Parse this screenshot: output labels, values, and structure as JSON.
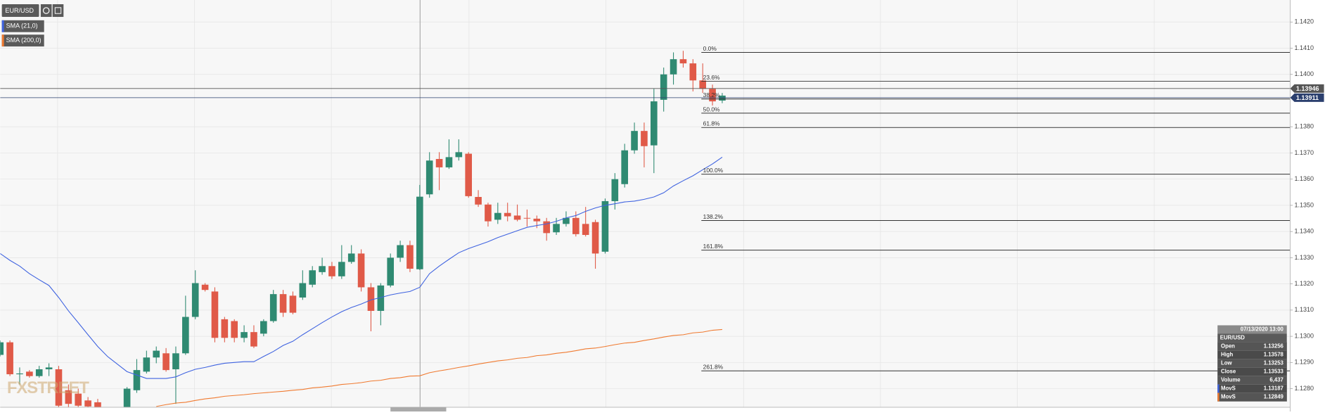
{
  "chart_data": {
    "type": "candlestick",
    "symbol": "EUR/USD",
    "categories": [
      null,
      null,
      null,
      null,
      null,
      null,
      null,
      null,
      null,
      null,
      null,
      null,
      null,
      null,
      null,
      null,
      null,
      null,
      null,
      null,
      null,
      null,
      null,
      null,
      null,
      null,
      null,
      null,
      null,
      null,
      null,
      null,
      null,
      null,
      null,
      null,
      null,
      null,
      null,
      null,
      null,
      null,
      null,
      null,
      null,
      null,
      null,
      null,
      null,
      null,
      null,
      null,
      null,
      null,
      null,
      null,
      null,
      null,
      null,
      null,
      null,
      null,
      null,
      null,
      null,
      null,
      null,
      null,
      null,
      null,
      null,
      null,
      null,
      null,
      null
    ],
    "open": [
      1.12929,
      1.12977,
      1.12855,
      1.12865,
      1.12848,
      1.12874,
      1.12874,
      1.12794,
      1.12781,
      1.12755,
      1.12748,
      1.1272,
      1.127,
      1.12715,
      1.12794,
      1.12865,
      1.12919,
      1.12935,
      1.12874,
      1.12935,
      1.13074,
      1.13197,
      1.13171,
      1.13065,
      1.13058,
      1.12994,
      1.13016,
      1.1301,
      1.13058,
      1.13161,
      1.13155,
      1.13148,
      1.13197,
      1.13245,
      1.13268,
      1.13229,
      1.13284,
      1.13316,
      1.13187,
      1.13097,
      1.13194,
      1.133,
      1.13348,
      1.13256,
      1.13542,
      1.13677,
      1.13645,
      1.13684,
      1.13697,
      1.13532,
      1.13503,
      1.13445,
      1.13471,
      1.13461,
      1.13452,
      1.13449,
      1.13439,
      1.13397,
      1.13429,
      1.13452,
      1.13429,
      1.13436,
      1.13323,
      1.13516,
      1.13581,
      1.1371,
      1.13784,
      1.13729,
      1.13903,
      1.14,
      1.14058,
      1.14042,
      1.13977,
      1.13945,
      1.139
    ],
    "high": [
      1.12984,
      1.12984,
      1.12881,
      1.12871,
      1.12887,
      1.12897,
      1.12887,
      1.12816,
      1.128,
      1.12768,
      1.12761,
      1.12725,
      1.12722,
      1.12806,
      1.12913,
      1.12945,
      1.12961,
      1.12955,
      1.12961,
      1.13155,
      1.13252,
      1.13203,
      1.13187,
      1.13074,
      1.13065,
      1.13042,
      1.13042,
      1.13065,
      1.13177,
      1.13177,
      1.13171,
      1.13252,
      1.13268,
      1.133,
      1.13284,
      1.13348,
      1.13348,
      1.13332,
      1.13203,
      1.13203,
      1.13316,
      1.13365,
      1.13365,
      1.13578,
      1.13703,
      1.13703,
      1.13752,
      1.13752,
      1.13703,
      1.13558,
      1.1351,
      1.1351,
      1.1351,
      1.13503,
      1.13484,
      1.13461,
      1.13452,
      1.13452,
      1.13477,
      1.13477,
      1.13494,
      1.13445,
      1.13526,
      1.13623,
      1.13735,
      1.13816,
      1.13816,
      1.13945,
      1.14026,
      1.14084,
      1.1409,
      1.14058,
      1.14042,
      1.13961,
      1.13929
    ],
    "low": [
      1.12923,
      1.12848,
      1.12816,
      1.12842,
      1.12842,
      1.12848,
      1.12719,
      1.12729,
      1.12729,
      1.12729,
      1.12729,
      1.1269,
      1.12685,
      1.127,
      1.12784,
      1.12858,
      1.12897,
      1.12865,
      1.12742,
      1.12929,
      1.13065,
      1.13171,
      1.12977,
      1.12977,
      1.12977,
      1.12977,
      1.12955,
      1.13,
      1.13052,
      1.13074,
      1.13084,
      1.13139,
      1.13187,
      1.13235,
      1.13219,
      1.13219,
      1.13277,
      1.13171,
      1.13019,
      1.13042,
      1.13187,
      1.13284,
      1.13245,
      1.13253,
      1.13529,
      1.13558,
      1.13639,
      1.13671,
      1.13529,
      1.13494,
      1.13419,
      1.13429,
      1.13439,
      1.13439,
      1.13419,
      1.13413,
      1.13365,
      1.13387,
      1.13419,
      1.13381,
      1.13381,
      1.13258,
      1.13316,
      1.13484,
      1.13568,
      1.13697,
      1.13645,
      1.13623,
      1.13858,
      1.13961,
      1.14026,
      1.13935,
      1.13929,
      1.13881,
      1.1389
    ],
    "close": [
      1.12977,
      1.12855,
      1.12858,
      1.12848,
      1.12874,
      1.12881,
      1.12735,
      1.12742,
      1.12735,
      1.12732,
      1.12729,
      1.127,
      1.12715,
      1.128,
      1.12871,
      1.12919,
      1.12945,
      1.12871,
      1.12935,
      1.13074,
      1.13203,
      1.13177,
      1.12994,
      1.12994,
      1.12994,
      1.13016,
      1.12961,
      1.13058,
      1.13161,
      1.1309,
      1.1309,
      1.13203,
      1.13252,
      1.13268,
      1.13229,
      1.13284,
      1.13316,
      1.13187,
      1.13097,
      1.13194,
      1.133,
      1.13348,
      1.13258,
      1.13533,
      1.13671,
      1.13645,
      1.13684,
      1.13703,
      1.13535,
      1.13503,
      1.13439,
      1.13471,
      1.13458,
      1.13445,
      1.1345,
      1.13439,
      1.13394,
      1.13429,
      1.13452,
      1.1339,
      1.13387,
      1.13316,
      1.13516,
      1.136,
      1.1371,
      1.13784,
      1.13726,
      1.13897,
      1.14,
      1.14058,
      1.14042,
      1.13977,
      1.13945,
      1.13897,
      1.13919
    ],
    "up_color": "#2f8a72",
    "down_color": "#e05a48",
    "series": [
      {
        "name": "SMA (21,0)",
        "color": "#3f63e0",
        "values": [
          1.13316,
          1.1329,
          1.13268,
          1.13239,
          1.13216,
          1.13194,
          1.13148,
          1.13097,
          1.13052,
          1.13006,
          1.12961,
          1.12923,
          1.12894,
          1.12865,
          1.12852,
          1.12839,
          1.12839,
          1.12839,
          1.12845,
          1.12861,
          1.12874,
          1.12881,
          1.1289,
          1.12897,
          1.129,
          1.12903,
          1.12903,
          1.12923,
          1.12942,
          1.12965,
          1.12981,
          1.13006,
          1.13029,
          1.13052,
          1.13074,
          1.13094,
          1.1311,
          1.13123,
          1.13139,
          1.13148,
          1.13158,
          1.13165,
          1.13171,
          1.13187,
          1.13239,
          1.13268,
          1.13294,
          1.13319,
          1.13335,
          1.13348,
          1.13361,
          1.13377,
          1.1339,
          1.13403,
          1.13416,
          1.13423,
          1.13429,
          1.13439,
          1.13452,
          1.13461,
          1.13477,
          1.1349,
          1.135,
          1.13506,
          1.13513,
          1.13516,
          1.13523,
          1.13532,
          1.13548,
          1.13574,
          1.13594,
          1.13613,
          1.13636,
          1.13658,
          1.13684
        ]
      },
      {
        "name": "SMA (200,0)",
        "color": "#f07a30",
        "values": [
          null,
          null,
          null,
          null,
          null,
          null,
          null,
          null,
          null,
          null,
          null,
          null,
          null,
          null,
          null,
          null,
          1.12732,
          1.12739,
          1.12745,
          1.12748,
          1.12755,
          1.12761,
          1.12765,
          1.12771,
          1.12774,
          1.12777,
          1.12781,
          1.12784,
          1.12787,
          1.1279,
          1.12794,
          1.12797,
          1.12803,
          1.12806,
          1.1281,
          1.12816,
          1.12819,
          1.12823,
          1.12829,
          1.12832,
          1.12839,
          1.12842,
          1.12848,
          1.12849,
          1.12861,
          1.12868,
          1.12874,
          1.12881,
          1.12887,
          1.12894,
          1.129,
          1.12906,
          1.1291,
          1.12916,
          1.12919,
          1.12926,
          1.12929,
          1.12935,
          1.12939,
          1.12945,
          1.12952,
          1.12955,
          1.12961,
          1.12968,
          1.12974,
          1.12977,
          1.12984,
          1.1299,
          1.12997,
          1.13003,
          1.13006,
          1.13013,
          1.13016,
          1.13023,
          1.13026
        ]
      }
    ],
    "ylim": [
      1.12729,
      1.14284
    ],
    "yticks": [
      {
        "value": 1.128,
        "label": "1.1280"
      },
      {
        "value": 1.129,
        "label": "1.1290"
      },
      {
        "value": 1.13,
        "label": "1.1300"
      },
      {
        "value": 1.131,
        "label": "1.1310"
      },
      {
        "value": 1.132,
        "label": "1.1320"
      },
      {
        "value": 1.133,
        "label": "1.1330"
      },
      {
        "value": 1.134,
        "label": "1.1340"
      },
      {
        "value": 1.135,
        "label": "1.1350"
      },
      {
        "value": 1.136,
        "label": "1.1360"
      },
      {
        "value": 1.137,
        "label": "1.1370"
      },
      {
        "value": 1.138,
        "label": "1.1380"
      },
      {
        "value": 1.14,
        "label": "1.1400"
      },
      {
        "value": 1.141,
        "label": "1.1410"
      },
      {
        "value": 1.142,
        "label": "1.1420"
      }
    ],
    "grid": true,
    "fib_color": "#333333",
    "fib_levels": [
      {
        "value": 1.14084,
        "label": "0.0%"
      },
      {
        "value": 1.13974,
        "label": "23.6%"
      },
      {
        "value": 1.13906,
        "label": "38.2%"
      },
      {
        "value": 1.13852,
        "label": "50.0%"
      },
      {
        "value": 1.13797,
        "label": "61.8%"
      },
      {
        "value": 1.13619,
        "label": "100.0%"
      },
      {
        "value": 1.13442,
        "label": "138.2%"
      },
      {
        "value": 1.13329,
        "label": "161.8%"
      },
      {
        "value": 1.12868,
        "label": "261.8%"
      }
    ],
    "price_lines": [
      1.13946,
      1.13911
    ],
    "price_line_colors": [
      "#555555",
      "#2b3f6e"
    ],
    "watermark": "FXSTREET"
  },
  "data_window": {
    "title": "07/13/2020 13:00",
    "symbol": "EUR/USD",
    "rows": [
      [
        "Open",
        "1.13256"
      ],
      [
        "High",
        "1.13578"
      ],
      [
        "Low",
        "1.13253"
      ],
      [
        "Close",
        "1.13533"
      ],
      [
        "Volume",
        "6,437"
      ],
      [
        "MovS",
        "1.13187"
      ],
      [
        "MovS",
        "1.12849"
      ]
    ]
  }
}
